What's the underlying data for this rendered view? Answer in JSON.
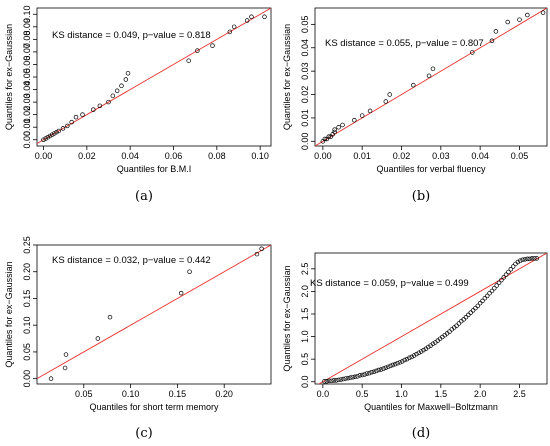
{
  "chart_data": [
    {
      "type": "scatter",
      "panel_label": "(a)",
      "xlabel": "Quantiles for B.M.I",
      "ylabel": "Quantiles for ex−Gaussian",
      "annotation": "KS distance = 0.049, p−value = 0.818",
      "xlim": [
        -0.003,
        0.105
      ],
      "ylim": [
        -0.005,
        0.105
      ],
      "xticks": [
        0.0,
        0.02,
        0.04,
        0.06,
        0.08,
        0.1
      ],
      "xtick_labels": [
        "0.00",
        "0.02",
        "0.04",
        "0.06",
        "0.08",
        "0.10"
      ],
      "yticks": [
        0.0,
        0.01,
        0.02,
        0.03,
        0.04,
        0.05,
        0.06,
        0.07,
        0.08,
        0.09,
        0.1
      ],
      "ytick_labels": [
        "0.00",
        "0.01",
        "0.02",
        "0.03",
        "0.04",
        "0.05",
        "0.06",
        "0.07",
        "0.08",
        "0.09",
        "0.10"
      ],
      "reference_line": "y = x",
      "reference_color": "#e8302a",
      "points": [
        [
          0.0,
          0.0
        ],
        [
          0.001,
          0.001
        ],
        [
          0.002,
          0.002
        ],
        [
          0.003,
          0.003
        ],
        [
          0.004,
          0.004
        ],
        [
          0.005,
          0.005
        ],
        [
          0.006,
          0.006
        ],
        [
          0.007,
          0.007
        ],
        [
          0.009,
          0.009
        ],
        [
          0.011,
          0.011
        ],
        [
          0.013,
          0.014
        ],
        [
          0.015,
          0.018
        ],
        [
          0.018,
          0.02
        ],
        [
          0.023,
          0.024
        ],
        [
          0.026,
          0.027
        ],
        [
          0.03,
          0.03
        ],
        [
          0.032,
          0.035
        ],
        [
          0.034,
          0.039
        ],
        [
          0.036,
          0.043
        ],
        [
          0.038,
          0.048
        ],
        [
          0.039,
          0.053
        ],
        [
          0.067,
          0.063
        ],
        [
          0.071,
          0.071
        ],
        [
          0.078,
          0.075
        ],
        [
          0.086,
          0.086
        ],
        [
          0.088,
          0.09
        ],
        [
          0.094,
          0.095
        ],
        [
          0.096,
          0.098
        ],
        [
          0.102,
          0.098
        ]
      ]
    },
    {
      "type": "scatter",
      "panel_label": "(b)",
      "xlabel": "Quantiles for verbal fluency",
      "ylabel": "Quantiles for ex−Gaussian",
      "annotation": "KS distance = 0.055, p−value = 0.807",
      "xlim": [
        -0.002,
        0.057
      ],
      "ylim": [
        -0.002,
        0.057
      ],
      "xticks": [
        0.0,
        0.01,
        0.02,
        0.03,
        0.04,
        0.05
      ],
      "xtick_labels": [
        "0.00",
        "0.01",
        "0.02",
        "0.03",
        "0.04",
        "0.05"
      ],
      "yticks": [
        0.0,
        0.01,
        0.02,
        0.03,
        0.04,
        0.05
      ],
      "ytick_labels": [
        "0.00",
        "0.01",
        "0.02",
        "0.03",
        "0.04",
        "0.05"
      ],
      "reference_line": "y = x",
      "reference_color": "#e8302a",
      "points": [
        [
          0.0,
          0.0
        ],
        [
          0.0005,
          0.001
        ],
        [
          0.001,
          0.001
        ],
        [
          0.0015,
          0.002
        ],
        [
          0.002,
          0.002
        ],
        [
          0.0025,
          0.003
        ],
        [
          0.003,
          0.004
        ],
        [
          0.003,
          0.005
        ],
        [
          0.004,
          0.006
        ],
        [
          0.005,
          0.007
        ],
        [
          0.008,
          0.009
        ],
        [
          0.01,
          0.011
        ],
        [
          0.012,
          0.013
        ],
        [
          0.016,
          0.017
        ],
        [
          0.017,
          0.02
        ],
        [
          0.023,
          0.024
        ],
        [
          0.027,
          0.028
        ],
        [
          0.028,
          0.031
        ],
        [
          0.038,
          0.038
        ],
        [
          0.043,
          0.043
        ],
        [
          0.044,
          0.047
        ],
        [
          0.047,
          0.051
        ],
        [
          0.05,
          0.052
        ],
        [
          0.052,
          0.054
        ],
        [
          0.056,
          0.055
        ]
      ]
    },
    {
      "type": "scatter",
      "panel_label": "(c)",
      "xlabel": "Quantiles for short term memory",
      "ylabel": "Quantiles for ex−Gaussian",
      "annotation": "KS distance = 0.032, p−value = 0.442",
      "xlim": [
        0.0,
        0.25
      ],
      "ylim": [
        -0.01,
        0.25
      ],
      "xticks": [
        0.05,
        0.1,
        0.15,
        0.2
      ],
      "xtick_labels": [
        "0.05",
        "0.10",
        "0.15",
        "0.20"
      ],
      "yticks": [
        0.0,
        0.05,
        0.1,
        0.15,
        0.2,
        0.25
      ],
      "ytick_labels": [
        "0.00",
        "0.05",
        "0.10",
        "0.15",
        "0.20",
        "0.25"
      ],
      "reference_line": "y = x",
      "reference_color": "#e8302a",
      "points": [
        [
          0.015,
          0.0
        ],
        [
          0.03,
          0.02
        ],
        [
          0.031,
          0.045
        ],
        [
          0.065,
          0.075
        ],
        [
          0.078,
          0.115
        ],
        [
          0.154,
          0.16
        ],
        [
          0.163,
          0.2
        ],
        [
          0.235,
          0.233
        ],
        [
          0.24,
          0.243
        ]
      ]
    },
    {
      "type": "scatter",
      "panel_label": "(d)",
      "xlabel": "Quantiles for Maxwell−Boltzmann",
      "ylabel": "Quantiles for ex−Gaussian",
      "annotation": "KS distance = 0.059, p−value = 0.499",
      "xlim": [
        -0.1,
        2.85
      ],
      "ylim": [
        -0.05,
        2.85
      ],
      "xticks": [
        0.0,
        0.5,
        1.0,
        1.5,
        2.0,
        2.5
      ],
      "xtick_labels": [
        "0.0",
        "0.5",
        "1.0",
        "1.5",
        "2.0",
        "2.5"
      ],
      "yticks": [
        0.0,
        0.5,
        1.0,
        1.5,
        2.0,
        2.5
      ],
      "ytick_labels": [
        "0.0",
        "0.5",
        "1.0",
        "1.5",
        "2.0",
        "2.5"
      ],
      "reference_line": "y = x",
      "reference_color": "#e8302a",
      "points": [
        [
          0.02,
          0.01
        ],
        [
          0.05,
          0.01
        ],
        [
          0.08,
          0.02
        ],
        [
          0.11,
          0.02
        ],
        [
          0.14,
          0.03
        ],
        [
          0.17,
          0.03
        ],
        [
          0.2,
          0.04
        ],
        [
          0.23,
          0.05
        ],
        [
          0.26,
          0.06
        ],
        [
          0.29,
          0.07
        ],
        [
          0.32,
          0.08
        ],
        [
          0.35,
          0.09
        ],
        [
          0.38,
          0.1
        ],
        [
          0.41,
          0.11
        ],
        [
          0.44,
          0.12
        ],
        [
          0.47,
          0.14
        ],
        [
          0.5,
          0.15
        ],
        [
          0.53,
          0.16
        ],
        [
          0.56,
          0.18
        ],
        [
          0.59,
          0.19
        ],
        [
          0.62,
          0.21
        ],
        [
          0.65,
          0.22
        ],
        [
          0.68,
          0.24
        ],
        [
          0.71,
          0.26
        ],
        [
          0.74,
          0.27
        ],
        [
          0.77,
          0.29
        ],
        [
          0.8,
          0.31
        ],
        [
          0.83,
          0.33
        ],
        [
          0.86,
          0.35
        ],
        [
          0.89,
          0.37
        ],
        [
          0.92,
          0.39
        ],
        [
          0.95,
          0.41
        ],
        [
          0.98,
          0.43
        ],
        [
          1.01,
          0.45
        ],
        [
          1.04,
          0.48
        ],
        [
          1.07,
          0.5
        ],
        [
          1.1,
          0.53
        ],
        [
          1.13,
          0.55
        ],
        [
          1.16,
          0.58
        ],
        [
          1.19,
          0.61
        ],
        [
          1.22,
          0.64
        ],
        [
          1.25,
          0.67
        ],
        [
          1.28,
          0.7
        ],
        [
          1.31,
          0.73
        ],
        [
          1.34,
          0.77
        ],
        [
          1.37,
          0.8
        ],
        [
          1.4,
          0.84
        ],
        [
          1.43,
          0.87
        ],
        [
          1.46,
          0.91
        ],
        [
          1.49,
          0.95
        ],
        [
          1.52,
          0.99
        ],
        [
          1.55,
          1.03
        ],
        [
          1.58,
          1.07
        ],
        [
          1.61,
          1.11
        ],
        [
          1.64,
          1.16
        ],
        [
          1.67,
          1.2
        ],
        [
          1.7,
          1.24
        ],
        [
          1.73,
          1.29
        ],
        [
          1.76,
          1.34
        ],
        [
          1.79,
          1.38
        ],
        [
          1.82,
          1.43
        ],
        [
          1.85,
          1.48
        ],
        [
          1.88,
          1.53
        ],
        [
          1.91,
          1.58
        ],
        [
          1.94,
          1.63
        ],
        [
          1.97,
          1.68
        ],
        [
          2.0,
          1.74
        ],
        [
          2.03,
          1.79
        ],
        [
          2.06,
          1.85
        ],
        [
          2.09,
          1.9
        ],
        [
          2.12,
          1.96
        ],
        [
          2.15,
          2.01
        ],
        [
          2.18,
          2.07
        ],
        [
          2.21,
          2.13
        ],
        [
          2.24,
          2.19
        ],
        [
          2.27,
          2.25
        ],
        [
          2.3,
          2.31
        ],
        [
          2.33,
          2.37
        ],
        [
          2.36,
          2.43
        ],
        [
          2.39,
          2.49
        ],
        [
          2.42,
          2.55
        ],
        [
          2.45,
          2.61
        ],
        [
          2.48,
          2.65
        ],
        [
          2.51,
          2.68
        ],
        [
          2.54,
          2.7
        ],
        [
          2.57,
          2.71
        ],
        [
          2.6,
          2.72
        ],
        [
          2.63,
          2.72
        ],
        [
          2.66,
          2.73
        ],
        [
          2.69,
          2.73
        ],
        [
          2.72,
          2.73
        ]
      ]
    }
  ]
}
